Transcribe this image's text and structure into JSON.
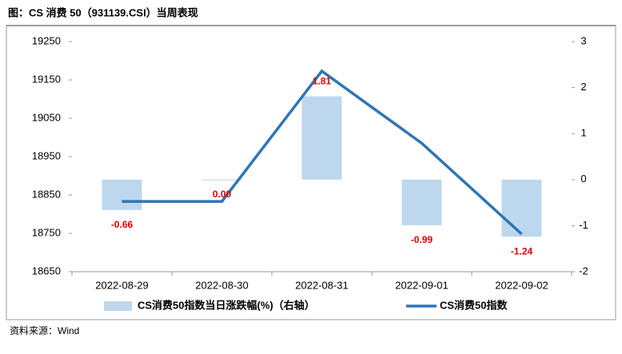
{
  "title": "图：CS 消费 50（931139.CSI）当周表现",
  "source": "资料来源：Wind",
  "chart_data": {
    "type": "combo",
    "categories": [
      "2022-08-29",
      "2022-08-30",
      "2022-08-31",
      "2022-09-01",
      "2022-09-02"
    ],
    "series": [
      {
        "name": "CS消费50指数当日涨跌幅(%)（右轴）",
        "type": "bar",
        "axis": "y2",
        "color": "#bdd7ee",
        "label_color": "#e00000",
        "values": [
          -0.66,
          0,
          1.81,
          -0.99,
          -1.24
        ],
        "value_labels": [
          "-0.66",
          "0.00",
          "1.81",
          "-0.99",
          "-1.24"
        ]
      },
      {
        "name": "CS消费50指数",
        "type": "line",
        "color": "#2e75b6",
        "values": [
          18833,
          18833,
          19173,
          18985,
          18748
        ]
      }
    ],
    "ylim": [
      18650,
      19250
    ],
    "yticks": [
      18650,
      18750,
      18850,
      18950,
      19050,
      19150,
      19250
    ],
    "y2lim": [
      -2,
      3
    ],
    "y2ticks": [
      -2,
      -1,
      0,
      1,
      2,
      3
    ],
    "grid": false,
    "legend": "bottom"
  }
}
